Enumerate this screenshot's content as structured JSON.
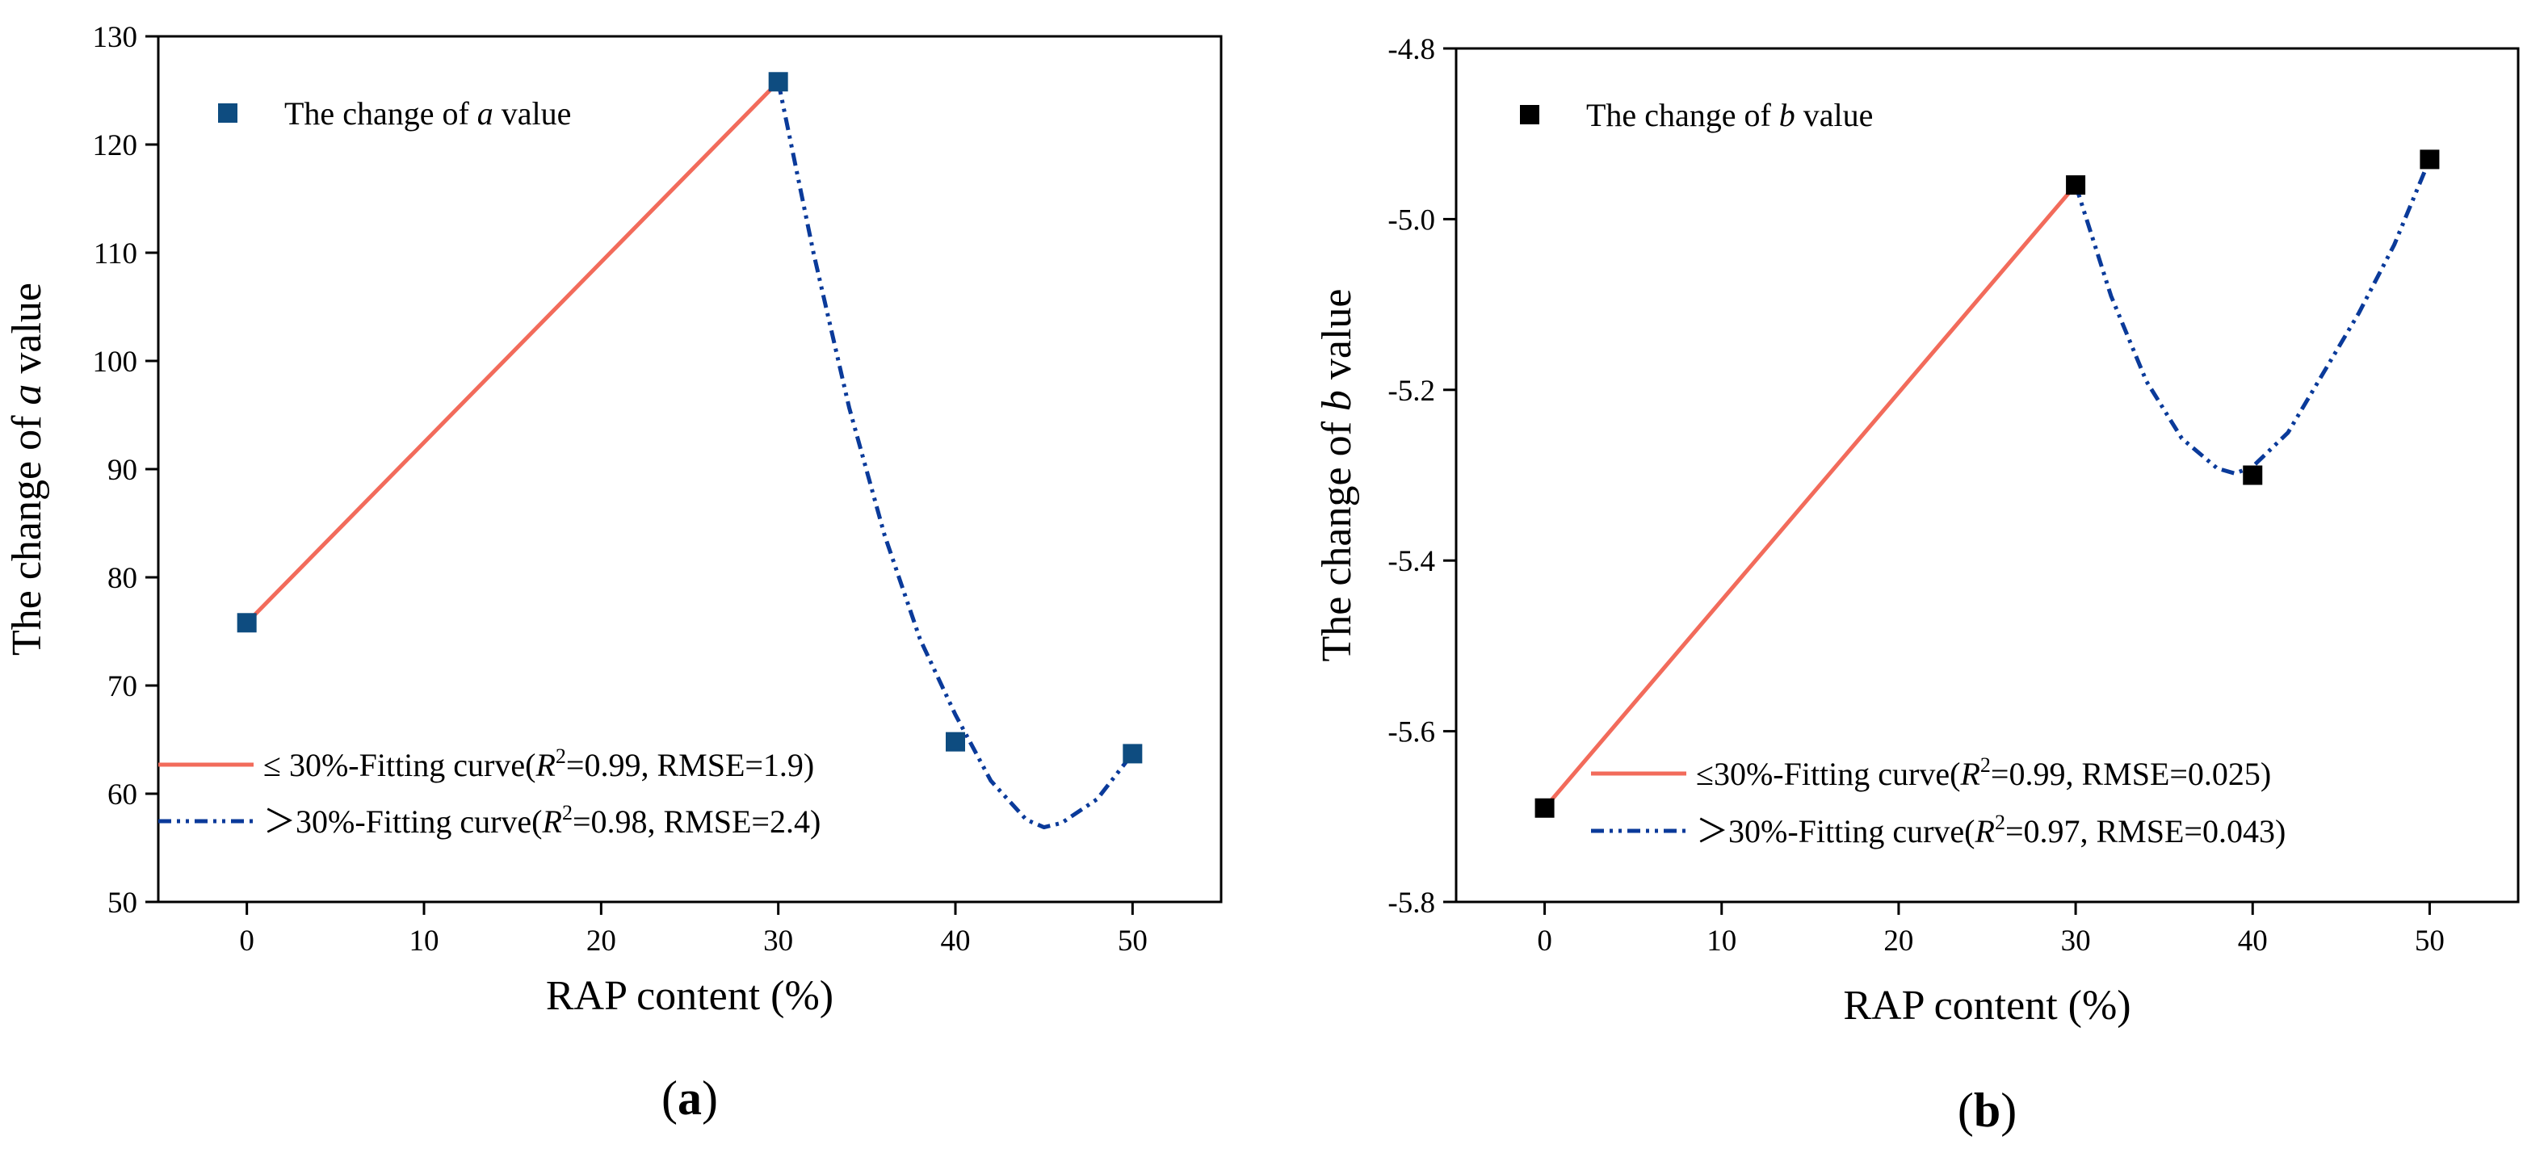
{
  "chart_data": [
    {
      "type": "line",
      "panel_label": "(a)",
      "panel_label_parts": [
        "(",
        "a",
        ")"
      ],
      "xlabel": "RAP content (%)",
      "ylabel_parts": [
        "The change of ",
        "a",
        " value"
      ],
      "xlim": [
        -5,
        55
      ],
      "ylim": [
        50,
        130
      ],
      "x_ticks": [
        0,
        10,
        20,
        30,
        40,
        50
      ],
      "y_ticks": [
        50,
        60,
        70,
        80,
        90,
        100,
        110,
        120,
        130
      ],
      "grid": false,
      "marker_color": "#0E4C80",
      "points": {
        "name_parts": [
          "The change of ",
          "a",
          " value"
        ],
        "x": [
          0,
          30,
          40,
          50
        ],
        "y": [
          75.8,
          125.8,
          64.8,
          63.7
        ]
      },
      "fit_low": {
        "label_parts": [
          "≤ 30%-Fitting curve(",
          "R",
          "2",
          "=0.99, RMSE=1.9)"
        ],
        "color": "#F26B5B",
        "style": "solid",
        "x": [
          0,
          30
        ],
        "y": [
          75.8,
          125.8
        ]
      },
      "fit_high": {
        "label_parts": [
          "＞30%-Fitting curve(",
          "R",
          "2",
          "=0.98, RMSE=2.4)"
        ],
        "color": "#0A3A9A",
        "style": "dash-dot-dot",
        "x": [
          30,
          32,
          34,
          36,
          38,
          40,
          42,
          44,
          45,
          46,
          48,
          50
        ],
        "y": [
          125.8,
          109.9,
          95.7,
          83.9,
          74.3,
          67.3,
          61.2,
          57.6,
          56.9,
          57.3,
          59.5,
          63.7
        ]
      },
      "legend_position": "top-left (markers), bottom-left (fits)"
    },
    {
      "type": "line",
      "panel_label": "(b)",
      "panel_label_parts": [
        "(",
        "b",
        ")"
      ],
      "xlabel": "RAP content (%)",
      "ylabel_parts": [
        "The change of ",
        "b",
        " value"
      ],
      "xlim": [
        -5,
        55
      ],
      "ylim": [
        -5.8,
        -4.8
      ],
      "x_ticks": [
        0,
        10,
        20,
        30,
        40,
        50
      ],
      "y_ticks": [
        -5.8,
        -5.6,
        -5.4,
        -5.2,
        -5.0,
        -4.8
      ],
      "y_tick_labels": [
        "-5.8",
        "-5.6",
        "-5.4",
        "-5.2",
        "-5.0",
        "-4.8"
      ],
      "grid": false,
      "marker_color": "#000000",
      "points": {
        "name_parts": [
          "The change of ",
          "b",
          " value"
        ],
        "x": [
          0,
          30,
          40,
          50
        ],
        "y": [
          -5.69,
          -4.96,
          -5.3,
          -4.93
        ]
      },
      "fit_low": {
        "label_parts": [
          "≤30%-Fitting curve(",
          "R",
          "2",
          "=0.99, RMSE=0.025)"
        ],
        "color": "#F26B5B",
        "style": "solid",
        "x": [
          0,
          30
        ],
        "y": [
          -5.69,
          -4.96
        ]
      },
      "fit_high": {
        "label_parts": [
          "＞30%-Fitting curve(",
          "R",
          "2",
          "=0.97, RMSE=0.043)"
        ],
        "color": "#0A3A9A",
        "style": "dash-dot-dot",
        "x": [
          30,
          32,
          34,
          36,
          38,
          39,
          40,
          42,
          44,
          46,
          48,
          50
        ],
        "y": [
          -4.96,
          -5.09,
          -5.19,
          -5.257,
          -5.292,
          -5.298,
          -5.29,
          -5.25,
          -5.18,
          -5.11,
          -5.03,
          -4.93
        ]
      },
      "legend_position": "top-left (markers), bottom-right (fits)"
    }
  ]
}
